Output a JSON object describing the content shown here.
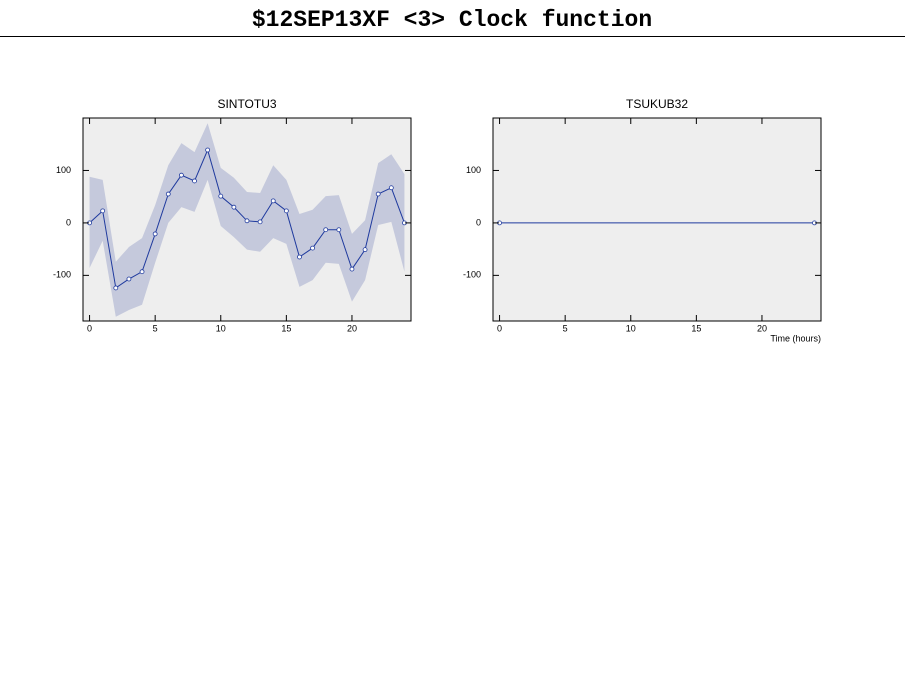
{
  "title": "$12SEP13XF <3>  Clock function",
  "chart_data": [
    {
      "type": "line",
      "title": "SINTOTU3",
      "x": [
        0,
        1,
        2,
        3,
        4,
        5,
        6,
        7,
        8,
        9,
        10,
        11,
        12,
        13,
        14,
        15,
        16,
        17,
        18,
        19,
        20,
        21,
        22,
        23,
        24
      ],
      "values": [
        0,
        23,
        -124,
        -107,
        -93,
        -21,
        55,
        91,
        80,
        139,
        51,
        30,
        4,
        2,
        42,
        23,
        -65,
        -48,
        -13,
        -13,
        -88,
        -51,
        55,
        67,
        0
      ],
      "band_upper": [
        88,
        82,
        -74,
        -46,
        -29,
        34,
        110,
        152,
        135,
        190,
        105,
        86,
        59,
        57,
        110,
        82,
        17,
        25,
        51,
        53,
        -21,
        5,
        114,
        131,
        93
      ],
      "band_lower": [
        -86,
        -34,
        -179,
        -166,
        -156,
        -76,
        0,
        30,
        21,
        82,
        -6,
        -27,
        -51,
        -55,
        -29,
        -40,
        -122,
        -109,
        -76,
        -78,
        -150,
        -109,
        -4,
        2,
        -93
      ],
      "color": "#1f3a9e",
      "band_color": "#c5c9dc",
      "background": "#eeeeee",
      "xlim": [
        -0.5,
        24.5
      ],
      "ylim": [
        -187,
        200
      ],
      "xticks": [
        0,
        5,
        10,
        15,
        20
      ],
      "yticks": [
        -100,
        0,
        100
      ]
    },
    {
      "type": "line",
      "title": "TSUKUB32",
      "xlabel": "Time (hours)",
      "x": [
        0,
        24
      ],
      "values": [
        0,
        0
      ],
      "color": "#1f3a9e",
      "background": "#eeeeee",
      "xlim": [
        -0.5,
        24.5
      ],
      "ylim": [
        -187,
        200
      ],
      "xticks": [
        0,
        5,
        10,
        15,
        20
      ],
      "yticks": [
        -100,
        0,
        100
      ]
    }
  ]
}
